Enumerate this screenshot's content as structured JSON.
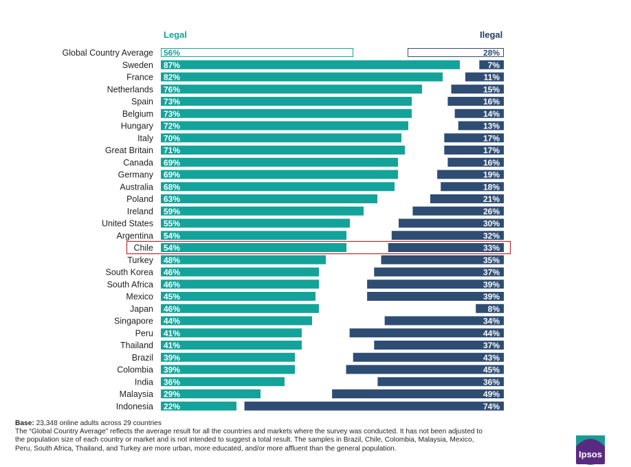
{
  "chart_data": {
    "type": "bar",
    "subtype": "diverging-horizontal",
    "series": [
      {
        "name": "Legal",
        "color": "#13a39a"
      },
      {
        "name": "Ilegal",
        "color": "#2f4d73"
      }
    ],
    "highlight": "Chile",
    "rows": [
      {
        "country": "Global Country Average",
        "legal": 56,
        "illegal": 28,
        "legal_label": "56%",
        "illegal_label": "28%",
        "outline": true
      },
      {
        "country": "Sweden",
        "legal": 87,
        "illegal": 7,
        "legal_label": "87%",
        "illegal_label": "7%"
      },
      {
        "country": "France",
        "legal": 82,
        "illegal": 11,
        "legal_label": "82%",
        "illegal_label": "11%"
      },
      {
        "country": "Netherlands",
        "legal": 76,
        "illegal": 15,
        "legal_label": "76%",
        "illegal_label": "15%"
      },
      {
        "country": "Spain",
        "legal": 73,
        "illegal": 16,
        "legal_label": "73%",
        "illegal_label": "16%"
      },
      {
        "country": "Belgium",
        "legal": 73,
        "illegal": 14,
        "legal_label": "73%",
        "illegal_label": "14%"
      },
      {
        "country": "Hungary",
        "legal": 72,
        "illegal": 13,
        "legal_label": "72%",
        "illegal_label": "13%"
      },
      {
        "country": "Italy",
        "legal": 70,
        "illegal": 17,
        "legal_label": "70%",
        "illegal_label": "17%"
      },
      {
        "country": "Great Britain",
        "legal": 71,
        "illegal": 17,
        "legal_label": "71%",
        "illegal_label": "17%"
      },
      {
        "country": "Canada",
        "legal": 69,
        "illegal": 16,
        "legal_label": "69%",
        "illegal_label": "16%"
      },
      {
        "country": "Germany",
        "legal": 69,
        "illegal": 19,
        "legal_label": "69%",
        "illegal_label": "19%"
      },
      {
        "country": "Australia",
        "legal": 68,
        "illegal": 18,
        "legal_label": "68%",
        "illegal_label": "18%"
      },
      {
        "country": "Poland",
        "legal": 63,
        "illegal": 21,
        "legal_label": "63%",
        "illegal_label": "21%"
      },
      {
        "country": "Ireland",
        "legal": 59,
        "illegal": 26,
        "legal_label": "59%",
        "illegal_label": "26%"
      },
      {
        "country": "United States",
        "legal": 55,
        "illegal": 30,
        "legal_label": "55%",
        "illegal_label": "30%"
      },
      {
        "country": "Argentina",
        "legal": 54,
        "illegal": 32,
        "legal_label": "54%",
        "illegal_label": "32%"
      },
      {
        "country": "Chile",
        "legal": 54,
        "illegal": 33,
        "legal_label": "54%",
        "illegal_label": "33%"
      },
      {
        "country": "Turkey",
        "legal": 48,
        "illegal": 35,
        "legal_label": "48%",
        "illegal_label": "35%"
      },
      {
        "country": "South Korea",
        "legal": 46,
        "illegal": 37,
        "legal_label": "46%",
        "illegal_label": "37%"
      },
      {
        "country": "South Africa",
        "legal": 46,
        "illegal": 39,
        "legal_label": "46%",
        "illegal_label": "39%"
      },
      {
        "country": "Mexico",
        "legal": 45,
        "illegal": 39,
        "legal_label": "45%",
        "illegal_label": "39%"
      },
      {
        "country": "Japan",
        "legal": 46,
        "illegal": 8,
        "legal_label": "46%",
        "illegal_label": "8%"
      },
      {
        "country": "Singapore",
        "legal": 44,
        "illegal": 34,
        "legal_label": "44%",
        "illegal_label": "34%"
      },
      {
        "country": "Peru",
        "legal": 41,
        "illegal": 44,
        "legal_label": "41%",
        "illegal_label": "44%"
      },
      {
        "country": "Thailand",
        "legal": 41,
        "illegal": 37,
        "legal_label": "41%",
        "illegal_label": "37%"
      },
      {
        "country": "Brazil",
        "legal": 39,
        "illegal": 43,
        "legal_label": "39%",
        "illegal_label": "43%"
      },
      {
        "country": "Colombia",
        "legal": 39,
        "illegal": 45,
        "legal_label": "39%",
        "illegal_label": "45%"
      },
      {
        "country": "India",
        "legal": 36,
        "illegal": 36,
        "legal_label": "36%",
        "illegal_label": "36%"
      },
      {
        "country": "Malaysia",
        "legal": 29,
        "illegal": 49,
        "legal_label": "29%",
        "illegal_label": "49%"
      },
      {
        "country": "Indonesia",
        "legal": 22,
        "illegal": 74,
        "legal_label": "22%",
        "illegal_label": "74%"
      }
    ],
    "grid": false
  },
  "headers": {
    "legal": "Legal",
    "illegal": "Ilegal"
  },
  "footnote": {
    "base_label": "Base:",
    "base_text": " 23,348 online adults across 29 countries",
    "lines": [
      "The “Global Country Average” reflects the average result for all the countries and markets where the survey was conducted. It has not been adjusted to",
      "the population size of each country or market and is not intended to suggest a total result. The samples in Brazil, Chile, Colombia, Malaysia, Mexico,",
      "Peru, South Africa, Thailand, and Turkey are more urban, more educated, and/or more affluent than the general population."
    ]
  },
  "logo": {
    "text": "Ipsos",
    "color": "#5a2a82"
  }
}
